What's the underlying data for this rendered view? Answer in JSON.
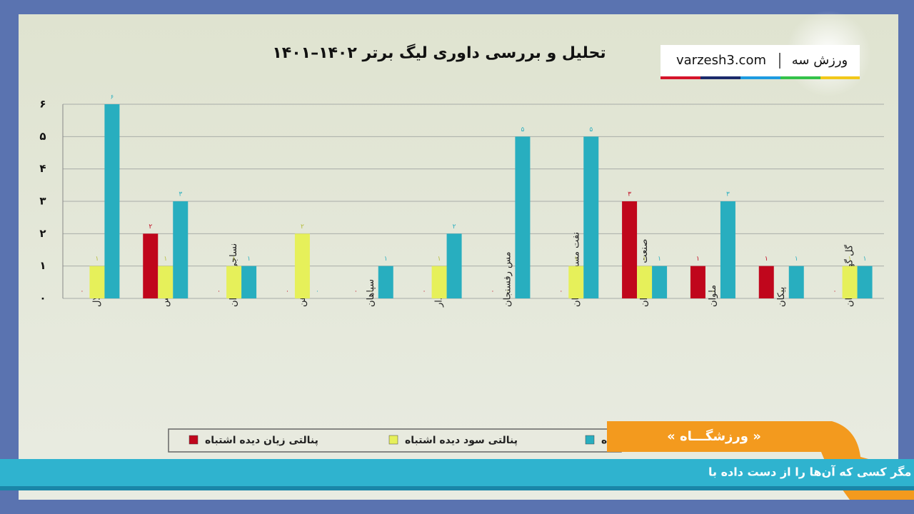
{
  "chart_data": {
    "type": "bar",
    "title": "تحلیل و بررسی داوری لیگ برتر ۱۴۰۲–۱۴۰۱",
    "categories": [
      "استقلال",
      "پرسپولیس",
      "نساجی مازندران",
      "ذوب آهن",
      "سپاهان",
      "هوادار",
      "مس رفسنجان",
      "نفت مسجد سلیمان",
      "صنعت نفت آبادان",
      "ملوان",
      "پیکان",
      "گل گهر سیرجان"
    ],
    "series": [
      {
        "name": "پنالتی زیان دیده اشتباه",
        "color": "#c0061c",
        "values": [
          0,
          2,
          0,
          0,
          0,
          0,
          0,
          0,
          3,
          1,
          1,
          0
        ],
        "value_labels": [
          "۰",
          "۲",
          "۰",
          "۰",
          "۰",
          "۰",
          "۰",
          "۰",
          "۳",
          "۱",
          "۱",
          "۰"
        ]
      },
      {
        "name": "پنالتی سود دیده اشتباه",
        "color": "#e6f05a",
        "values": [
          1,
          1,
          1,
          2,
          0,
          1,
          0,
          1,
          1,
          0,
          0,
          1
        ],
        "value_labels": [
          "۱",
          "۱",
          "۱",
          "۲",
          "۰",
          "۱",
          "۰",
          "۱",
          "۱",
          "۰",
          "۰",
          "۱"
        ]
      },
      {
        "name": "ده",
        "color": "#28aebf",
        "values": [
          6,
          3,
          1,
          0,
          1,
          2,
          5,
          5,
          1,
          3,
          1,
          1
        ],
        "value_labels": [
          "۶",
          "۳",
          "۱",
          "۰",
          "۱",
          "۲",
          "۵",
          "۵",
          "۱",
          "۳",
          "۱",
          "۱"
        ]
      }
    ],
    "ylim": [
      0,
      6
    ],
    "yticks": [
      {
        "value": 0,
        "label": "۰"
      },
      {
        "value": 1,
        "label": "۱"
      },
      {
        "value": 2,
        "label": "۲"
      },
      {
        "value": 3,
        "label": "۳"
      },
      {
        "value": 4,
        "label": "۴"
      },
      {
        "value": 5,
        "label": "۵"
      },
      {
        "value": 6,
        "label": "۶"
      }
    ],
    "grid": true
  },
  "logo": {
    "site": "varzesh3.com",
    "name": "ورزش سه"
  },
  "program": "« ورزشگـــاه »",
  "ticker": "امام علی علیه السلام: دو نعمت است که ارزش آن‌ها را نمی‌دانند، مگر کسی که آن‌ها را از دست داده با"
}
